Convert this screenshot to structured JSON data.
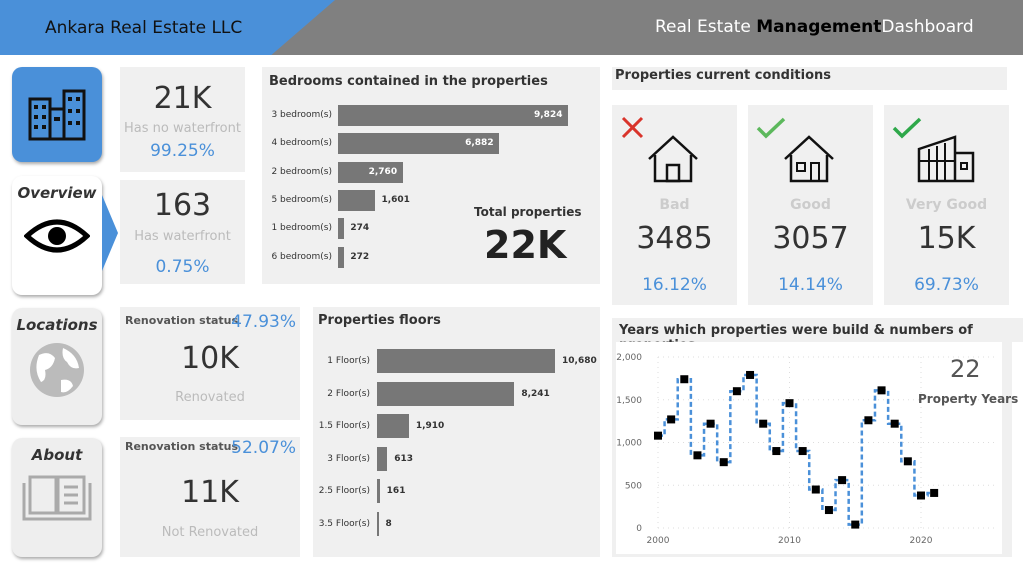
{
  "header": {
    "company": "Ankara Real Estate LLC",
    "title_part1": "Real Estate ",
    "title_part2": "Management",
    "title_part3": "Dashboard"
  },
  "sidebar": [
    {
      "label": "",
      "icon": "buildings-icon",
      "active": true
    },
    {
      "label": "Overview",
      "icon": "eye-icon"
    },
    {
      "label": "Locations",
      "icon": "globe-icon"
    },
    {
      "label": "About",
      "icon": "book-icon"
    }
  ],
  "waterfront": [
    {
      "value": "21K",
      "label": "Has no waterfront",
      "pct": "99.25%"
    },
    {
      "value": "163",
      "label": "Has waterfront",
      "pct": "0.75%"
    }
  ],
  "renovation": [
    {
      "title": "Renovation status",
      "pct": "47.93%",
      "value": "10K",
      "label": "Renovated"
    },
    {
      "title": "Renovation status",
      "pct": "52.07%",
      "value": "11K",
      "label": "Not Renovated"
    }
  ],
  "bedrooms": {
    "title": "Bedrooms contained in the properties",
    "categories": [
      "3 bedroom(s)",
      "4 bedroom(s)",
      "2 bedroom(s)",
      "5 bedroom(s)",
      "1 bedroom(s)",
      "6 bedroom(s)"
    ],
    "values": [
      9824,
      6882,
      2760,
      1601,
      274,
      272
    ],
    "labels": [
      "9,824",
      "6,882",
      "2,760",
      "1,601",
      "274",
      "272"
    ],
    "total_label": "Total properties",
    "total": "22K"
  },
  "floors": {
    "title": "Properties floors",
    "categories": [
      "1 Floor(s)",
      "2 Floor(s)",
      "1.5 Floor(s)",
      "3 Floor(s)",
      "2.5 Floor(s)",
      "3.5 Floor(s)"
    ],
    "values": [
      10680,
      8241,
      1910,
      613,
      161,
      8
    ],
    "labels": [
      "10,680",
      "8,241",
      "1,910",
      "613",
      "161",
      "8"
    ]
  },
  "conditions": {
    "title": "Properties current conditions",
    "items": [
      {
        "label": "Bad",
        "value": "3485",
        "pct": "16.12%",
        "mark": "x-icon",
        "mark_color": "#d9342b"
      },
      {
        "label": "Good",
        "value": "3057",
        "pct": "14.14%",
        "mark": "check-icon",
        "mark_color": "#5cb85c"
      },
      {
        "label": "Very Good",
        "value": "15K",
        "pct": "69.73%",
        "mark": "check-icon",
        "mark_color": "#2ea84a"
      }
    ]
  },
  "chart_data": {
    "type": "line",
    "title": "Years which properties were build & numbers of properties",
    "x": [
      2000,
      2001,
      2002,
      2003,
      2004,
      2005,
      2006,
      2007,
      2008,
      2009,
      2010,
      2011,
      2012,
      2013,
      2014,
      2015,
      2016,
      2017,
      2018,
      2019,
      2020,
      2021
    ],
    "values": [
      1080,
      1270,
      1740,
      850,
      1220,
      770,
      1600,
      1790,
      1220,
      900,
      1460,
      900,
      450,
      210,
      560,
      40,
      1260,
      1610,
      1220,
      780,
      380,
      410
    ],
    "ylim": [
      0,
      2000
    ],
    "yticks": [
      "0",
      "500",
      "1,000",
      "1,500",
      "2,000"
    ],
    "xticks": [
      "2000",
      "2010",
      "2020"
    ],
    "line_style": "step dashed",
    "line_color": "#4a90d9",
    "marker_color": "#000000",
    "grid": true,
    "kpi_value": "22",
    "kpi_label": "Property Years"
  }
}
